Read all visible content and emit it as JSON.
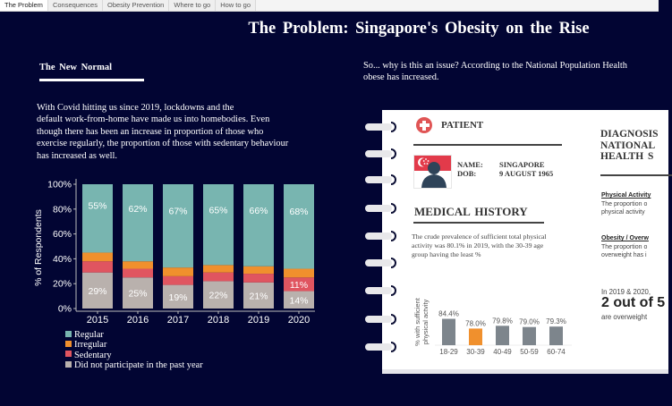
{
  "tabs": [
    {
      "label": "The Problem",
      "active": true
    },
    {
      "label": "Consequences",
      "active": false
    },
    {
      "label": "Obesity Prevention",
      "active": false
    },
    {
      "label": "Where to go",
      "active": false
    },
    {
      "label": "How to go",
      "active": false
    }
  ],
  "page": {
    "title": "The Problem: Singapore's Obesity on the Rise"
  },
  "left": {
    "heading": "The New Normal",
    "intro_lines": [
      "With Covid hitting us since 2019, lockdowns and the",
      "default work-from-home have made us into homebodies. Even",
      "though there has been an increase in proportion of those who",
      "exercise regularly, the proportion of those with sedentary behaviour",
      "has increased as well."
    ]
  },
  "right": {
    "intro_lines": [
      "So... why is this an issue? According to the National Population Health",
      "obese has increased."
    ],
    "patient": {
      "title": "PATIENT",
      "name_label": "NAME:",
      "name_value": "SINGAPORE",
      "dob_label": "DOB:",
      "dob_value": "9 AUGUST 1965"
    },
    "medical_history": {
      "title": "MEDICAL HISTORY",
      "text_lines": [
        "The crude prevalence of sufficient total physical",
        "activity was 80.1% in 2019, with the 30-39 age",
        "group having the least %"
      ]
    },
    "diagnosis": {
      "title_lines": [
        "DIAGNOSIS",
        "NATIONAL",
        "HEALTH S"
      ],
      "physical_activity_heading": "Physical Activity",
      "physical_activity_lines": [
        "The proportion o",
        "physical activity"
      ],
      "obesity_heading": "Obesity / Overw",
      "obesity_lines": [
        "The proportion o",
        "overweight has i"
      ],
      "stat_pre": "In 2019 & 2020,",
      "stat_big": "2 out of 5",
      "stat_post": "are overweight"
    }
  },
  "colors": {
    "background": "#020533",
    "regular": "#78b5b0",
    "irregular": "#f0902d",
    "sedentary": "#e05560",
    "did_not_participate": "#b9b1ad",
    "age_bar": "#7d858c",
    "age_bar_highlight": "#f0902d"
  },
  "chart_data": [
    {
      "type": "bar",
      "stacked": true,
      "title": "",
      "xlabel": "",
      "ylabel": "% of Respondents",
      "categories": [
        "2015",
        "2016",
        "2017",
        "2018",
        "2019",
        "2020"
      ],
      "ylim": [
        0,
        100
      ],
      "yticks": [
        "0%",
        "20%",
        "40%",
        "60%",
        "80%",
        "100%"
      ],
      "series": [
        {
          "name": "Did not participate in the past year",
          "values": [
            29,
            25,
            19,
            22,
            21,
            14
          ],
          "labels": [
            "29%",
            "25%",
            "19%",
            "22%",
            "21%",
            "14%"
          ]
        },
        {
          "name": "Sedentary",
          "values": [
            9,
            7,
            7,
            7,
            7,
            11
          ],
          "labels": [
            "",
            "",
            "",
            "",
            "",
            "11%"
          ]
        },
        {
          "name": "Irregular",
          "values": [
            7,
            6,
            7,
            6,
            6,
            7
          ],
          "labels": [
            "",
            "",
            "",
            "",
            "",
            ""
          ]
        },
        {
          "name": "Regular",
          "values": [
            55,
            62,
            67,
            65,
            66,
            68
          ],
          "labels": [
            "55%",
            "62%",
            "67%",
            "65%",
            "66%",
            "68%"
          ]
        }
      ],
      "legend": [
        "Regular",
        "Irregular",
        "Sedentary",
        "Did not participate in the past year"
      ],
      "legend_position": "bottom-left",
      "grid": false
    },
    {
      "type": "bar",
      "title": "",
      "xlabel": "",
      "ylabel": "% with sufficient physical activity",
      "categories": [
        "18-29",
        "30-39",
        "40-49",
        "50-59",
        "60-74"
      ],
      "values": [
        84.4,
        78.0,
        79.8,
        79.0,
        79.3
      ],
      "labels": [
        "84.4%",
        "78.0%",
        "79.8%",
        "79.0%",
        "79.3%"
      ],
      "highlight": "30-39",
      "ylim": [
        60,
        90
      ],
      "grid": false
    }
  ]
}
